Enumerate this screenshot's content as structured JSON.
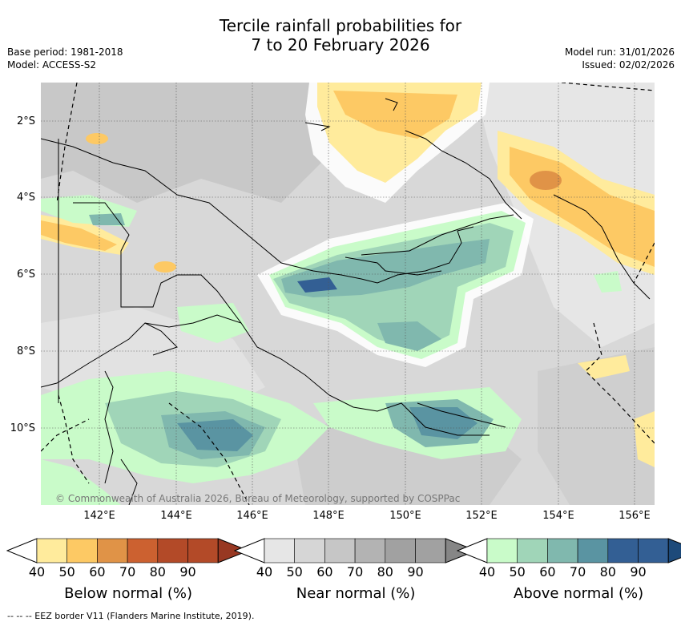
{
  "title": {
    "line1": "Tercile rainfall probabilities for",
    "line2": "7 to 20 February 2026"
  },
  "meta_left": {
    "base_period": "Base period: 1981-2018",
    "model": "Model: ACCESS-S2"
  },
  "meta_right": {
    "model_run": "Model run: 31/01/2026",
    "issued": "Issued: 02/02/2026"
  },
  "map": {
    "lat_labels": [
      "2°S",
      "4°S",
      "6°S",
      "8°S",
      "10°S"
    ],
    "lon_labels": [
      "142°E",
      "144°E",
      "146°E",
      "148°E",
      "150°E",
      "152°E",
      "154°E",
      "156°E"
    ],
    "credit": "© Commonwealth of Australia 2026, Bureau of Meteorology, supported by COSPPac"
  },
  "colorbars": [
    {
      "title": "Below normal (%)",
      "ticks": [
        "40",
        "50",
        "60",
        "70",
        "80",
        "90"
      ],
      "colors": [
        "#ffeb9c",
        "#fdc964",
        "#e09347",
        "#cc6130",
        "#b34a28",
        "#983822"
      ]
    },
    {
      "title": "Near normal (%)",
      "ticks": [
        "40",
        "50",
        "60",
        "70",
        "80",
        "90"
      ],
      "colors": [
        "#e6e6e6",
        "#d6d6d6",
        "#c6c6c6",
        "#b3b3b3",
        "#a1a1a1",
        "#868686"
      ]
    },
    {
      "title": "Above normal (%)",
      "ticks": [
        "40",
        "50",
        "60",
        "70",
        "80",
        "90"
      ],
      "colors": [
        "#c9fbc9",
        "#a0d5b8",
        "#80b8ae",
        "#5a94a2",
        "#335f94",
        "#1d4a7a"
      ]
    }
  ],
  "footnote": "-- -- -- EEZ border V11 (Flanders Marine Institute, 2019)."
}
